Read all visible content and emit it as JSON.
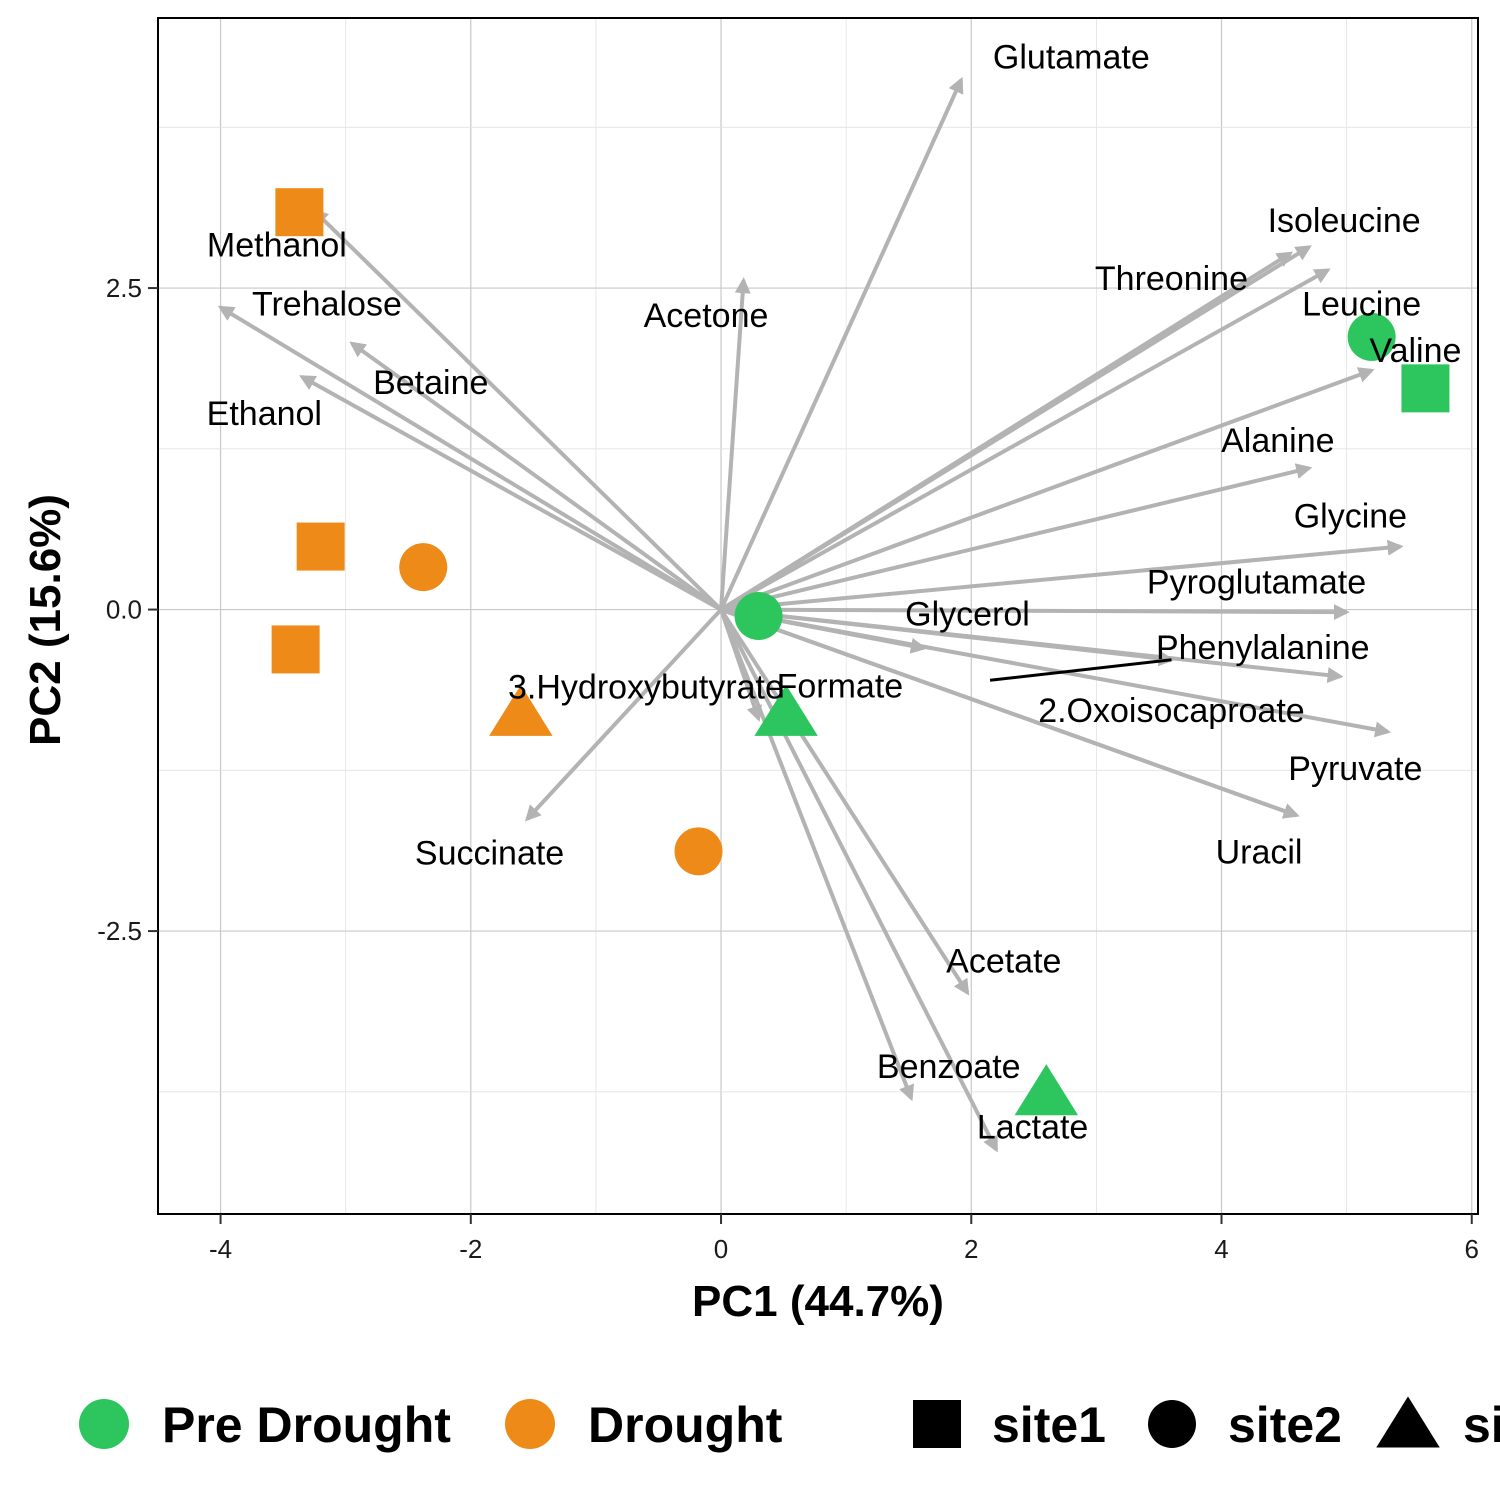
{
  "chart_data": {
    "type": "scatter",
    "subtype": "pca-biplot",
    "title": "",
    "xlabel": "PC1 (44.7%)",
    "ylabel": "PC2 (15.6%)",
    "xlim": [
      -4.5,
      6.05
    ],
    "ylim": [
      -4.7,
      4.6
    ],
    "xticks": [
      -4,
      -2,
      0,
      2,
      4,
      6
    ],
    "yticks": [
      -2.5,
      0.0,
      2.5
    ],
    "xtick_labels": [
      "-4",
      "-2",
      "0",
      "2",
      "4",
      "6"
    ],
    "ytick_labels": [
      "-2.5",
      "0.0",
      "2.5"
    ],
    "grid": true,
    "legend_position": "bottom",
    "colors": {
      "Pre Drought": "#2DC55E",
      "Drought": "#EE8A17",
      "arrow": "#B3B3B3",
      "shape_key": "#000000"
    },
    "legend": {
      "groups": [
        {
          "label": "Pre Drought",
          "color": "#2DC55E"
        },
        {
          "label": "Drought",
          "color": "#EE8A17"
        }
      ],
      "shapes": [
        {
          "label": "site1",
          "shape": "square"
        },
        {
          "label": "site2",
          "shape": "circle"
        },
        {
          "label": "si",
          "shape": "triangle"
        }
      ]
    },
    "points": [
      {
        "x": -3.37,
        "y": 3.09,
        "group": "Drought",
        "shape": "square"
      },
      {
        "x": -3.2,
        "y": 0.49,
        "group": "Drought",
        "shape": "square"
      },
      {
        "x": -3.4,
        "y": -0.31,
        "group": "Drought",
        "shape": "square"
      },
      {
        "x": -2.38,
        "y": 0.33,
        "group": "Drought",
        "shape": "circle"
      },
      {
        "x": -0.18,
        "y": -1.88,
        "group": "Drought",
        "shape": "circle"
      },
      {
        "x": -1.6,
        "y": -0.8,
        "group": "Drought",
        "shape": "triangle"
      },
      {
        "x": 5.2,
        "y": 2.12,
        "group": "Pre Drought",
        "shape": "circle"
      },
      {
        "x": 5.63,
        "y": 1.72,
        "group": "Pre Drought",
        "shape": "square"
      },
      {
        "x": 0.3,
        "y": -0.05,
        "group": "Pre Drought",
        "shape": "circle"
      },
      {
        "x": 0.52,
        "y": -0.8,
        "group": "Pre Drought",
        "shape": "triangle"
      },
      {
        "x": 2.6,
        "y": -3.75,
        "group": "Pre Drought",
        "shape": "triangle"
      }
    ],
    "loadings": [
      {
        "name": "Glutamate",
        "x": 1.92,
        "y": 4.12,
        "label_x": 2.8,
        "label_y": 4.3
      },
      {
        "name": "Methanol",
        "x": -3.25,
        "y": 3.1,
        "label_x": -3.55,
        "label_y": 2.84
      },
      {
        "name": "Trehalose",
        "x": -4.0,
        "y": 2.35,
        "label_x": -3.15,
        "label_y": 2.38
      },
      {
        "name": "Betaine",
        "x": -2.95,
        "y": 2.07,
        "label_x": -2.32,
        "label_y": 1.77
      },
      {
        "name": "Ethanol",
        "x": -3.35,
        "y": 1.81,
        "label_x": -3.65,
        "label_y": 1.53
      },
      {
        "name": "Acetone",
        "x": 0.18,
        "y": 2.56,
        "label_x": -0.12,
        "label_y": 2.29
      },
      {
        "name": "Isoleucine",
        "x": 4.7,
        "y": 2.82,
        "label_x": 4.98,
        "label_y": 3.03
      },
      {
        "name": "Threonine",
        "x": 4.55,
        "y": 2.77,
        "label_x": 3.6,
        "label_y": 2.58
      },
      {
        "name": "Leucine",
        "x": 4.85,
        "y": 2.64,
        "label_x": 5.12,
        "label_y": 2.38
      },
      {
        "name": "Valine",
        "x": 5.2,
        "y": 1.86,
        "label_x": 5.55,
        "label_y": 2.02
      },
      {
        "name": "Alanine",
        "x": 4.7,
        "y": 1.1,
        "label_x": 4.45,
        "label_y": 1.32
      },
      {
        "name": "Glycine",
        "x": 5.43,
        "y": 0.49,
        "label_x": 5.03,
        "label_y": 0.73
      },
      {
        "name": "Pyroglutamate",
        "x": 5.0,
        "y": -0.02,
        "label_x": 4.28,
        "label_y": 0.22
      },
      {
        "name": "Glycerol",
        "x": 1.62,
        "y": -0.3,
        "label_x": 1.97,
        "label_y": -0.03
      },
      {
        "name": "Phenylalanine",
        "x": 4.95,
        "y": -0.52,
        "label_x": 4.33,
        "label_y": -0.29
      },
      {
        "name": "Formate",
        "x": 3.6,
        "y": -0.39,
        "label_x": 0.95,
        "label_y": -0.59
      },
      {
        "name": "2.Oxoisocaproate",
        "x": 5.33,
        "y": -0.95,
        "label_x": 3.6,
        "label_y": -0.78
      },
      {
        "name": "Pyruvate",
        "x": 4.6,
        "y": -1.6,
        "label_x": 5.07,
        "label_y": -1.23
      },
      {
        "name": "Uracil",
        "x": 4.6,
        "y": -1.6,
        "label_x": 4.3,
        "label_y": -1.88
      },
      {
        "name": "3.Hydroxybutyrate",
        "x": 0.3,
        "y": -0.85,
        "label_x": -0.6,
        "label_y": -0.6
      },
      {
        "name": "Succinate",
        "x": -1.55,
        "y": -1.63,
        "label_x": -1.85,
        "label_y": -1.89
      },
      {
        "name": "Acetate",
        "x": 1.97,
        "y": -2.98,
        "label_x": 2.26,
        "label_y": -2.73
      },
      {
        "name": "Benzoate",
        "x": 1.52,
        "y": -3.8,
        "label_x": 1.82,
        "label_y": -3.55
      },
      {
        "name": "Lactate",
        "x": 2.2,
        "y": -4.2,
        "label_x": 2.49,
        "label_y": -4.02
      }
    ],
    "formate_leader_from": [
      2.15,
      -0.55
    ]
  }
}
